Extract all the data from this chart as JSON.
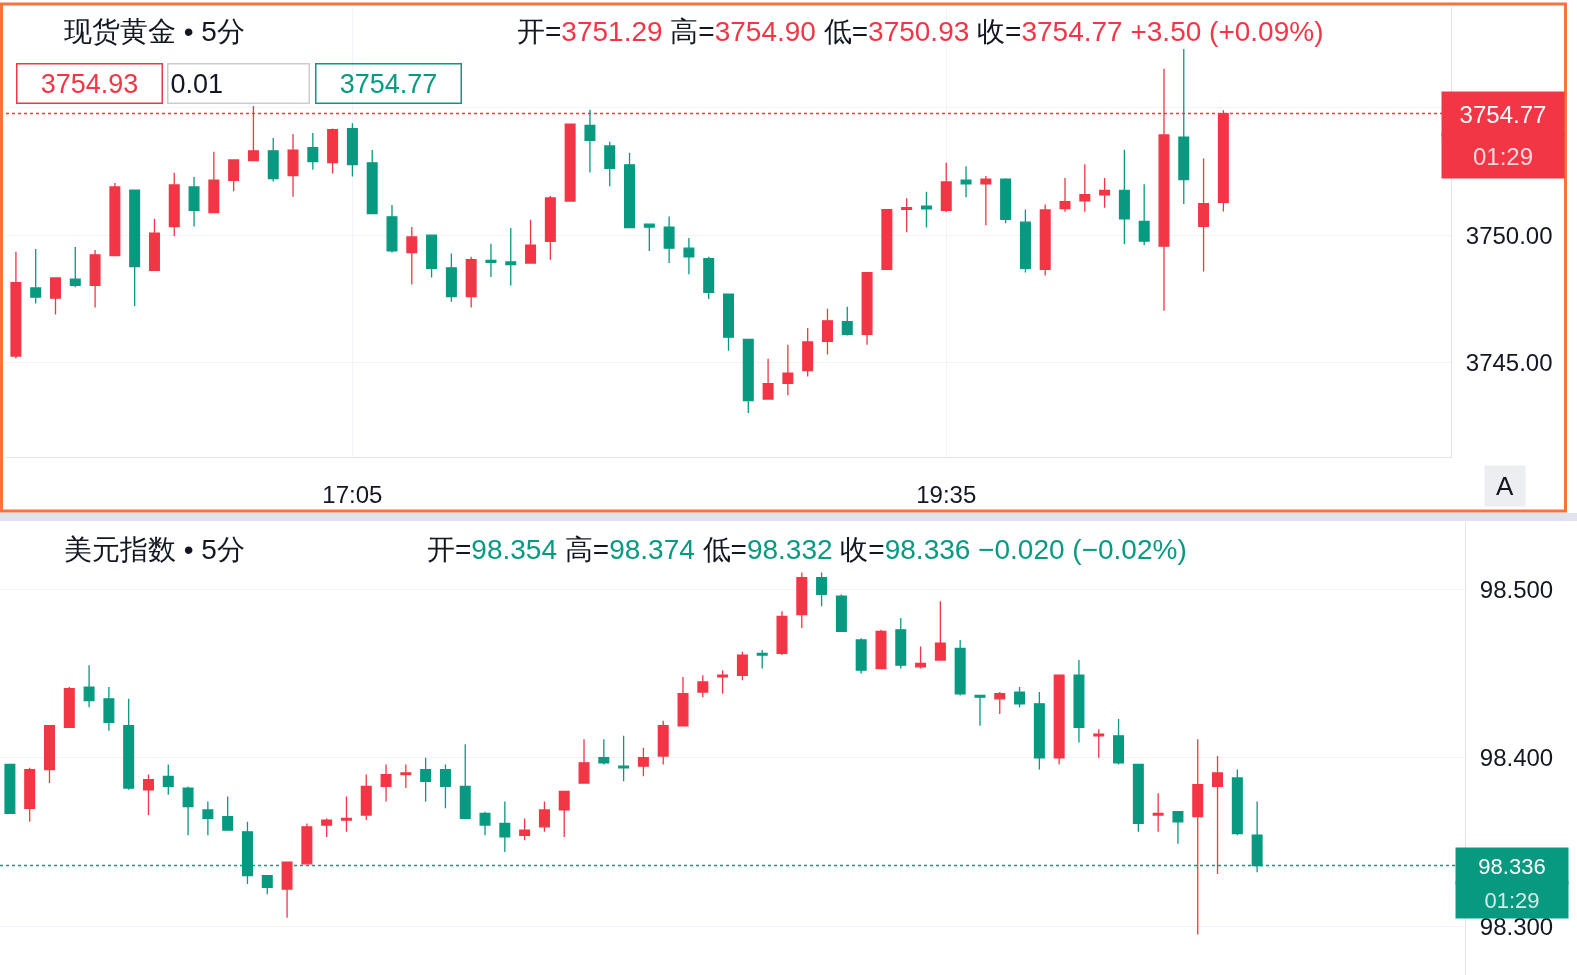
{
  "chart_data": [
    {
      "type": "candlestick",
      "title": "现货黄金 • 5分",
      "subtitle": "开=3751.29 高=3754.90 低=3750.93 收=3754.77 +3.50 (+0.09%)",
      "categories": [
        null,
        null,
        null,
        null,
        null,
        null,
        null,
        null,
        null,
        null,
        null,
        null,
        null,
        null,
        null,
        null,
        null,
        "17:05",
        null,
        null,
        null,
        null,
        null,
        null,
        null,
        null,
        null,
        null,
        null,
        null,
        null,
        null,
        null,
        null,
        null,
        null,
        null,
        null,
        null,
        null,
        null,
        null,
        null,
        null,
        null,
        null,
        null,
        "19:35",
        null,
        null,
        null,
        null,
        null,
        null,
        null,
        null,
        null,
        null,
        null,
        null,
        null,
        null,
        null,
        null,
        null,
        null,
        null,
        null,
        null,
        null,
        null,
        null,
        null
      ],
      "ohlc": [
        [
          3745.26,
          3749.35,
          3745.16,
          3748.14
        ],
        [
          3747.93,
          3749.46,
          3747.32,
          3747.57
        ],
        [
          3747.53,
          3748.35,
          3746.89,
          3748.32
        ],
        [
          3748.28,
          3749.54,
          3747.96,
          3748.03
        ],
        [
          3748.03,
          3749.42,
          3747.16,
          3749.23
        ],
        [
          3749.2,
          3752.05,
          3749.2,
          3751.89
        ],
        [
          3751.77,
          3751.77,
          3747.22,
          3748.77
        ],
        [
          3748.62,
          3750.64,
          3748.62,
          3750.08
        ],
        [
          3750.34,
          3752.45,
          3749.96,
          3751.97
        ],
        [
          3751.89,
          3752.28,
          3750.34,
          3750.97
        ],
        [
          3750.89,
          3753.27,
          3750.86,
          3752.16
        ],
        [
          3752.15,
          3752.95,
          3751.72,
          3752.95
        ],
        [
          3752.93,
          3755.07,
          3752.93,
          3753.31
        ],
        [
          3753.31,
          3753.81,
          3752.11,
          3752.22
        ],
        [
          3752.34,
          3753.97,
          3751.51,
          3753.34
        ],
        [
          3753.43,
          3754.01,
          3752.57,
          3752.89
        ],
        [
          3752.85,
          3754.18,
          3752.42,
          3754.14
        ],
        [
          3754.18,
          3754.39,
          3752.3,
          3752.77
        ],
        [
          3752.84,
          3753.34,
          3750.85,
          3750.85
        ],
        [
          3750.72,
          3751.18,
          3749.32,
          3749.39
        ],
        [
          3749.32,
          3750.32,
          3748.07,
          3749.93
        ],
        [
          3750.0,
          3750.0,
          3748.34,
          3748.7
        ],
        [
          3748.72,
          3749.28,
          3747.39,
          3747.59
        ],
        [
          3747.59,
          3749.15,
          3747.16,
          3749.04
        ],
        [
          3749.01,
          3749.66,
          3748.36,
          3748.93
        ],
        [
          3748.95,
          3750.28,
          3748.03,
          3748.85
        ],
        [
          3748.91,
          3750.61,
          3748.91,
          3749.61
        ],
        [
          3749.76,
          3751.54,
          3749.04,
          3751.46
        ],
        [
          3751.34,
          3754.36,
          3751.34,
          3754.36
        ],
        [
          3754.31,
          3754.92,
          3752.46,
          3753.72
        ],
        [
          3753.5,
          3753.66,
          3751.92,
          3752.62
        ],
        [
          3752.76,
          3753.23,
          3750.3,
          3750.3
        ],
        [
          3750.43,
          3750.43,
          3749.38,
          3750.32
        ],
        [
          3750.32,
          3750.73,
          3748.91,
          3749.49
        ],
        [
          3749.49,
          3749.89,
          3748.47,
          3749.15
        ],
        [
          3749.08,
          3749.15,
          3747.5,
          3747.76
        ],
        [
          3747.69,
          3747.69,
          3745.47,
          3746.0
        ],
        [
          3745.91,
          3745.93,
          3743.03,
          3743.51
        ],
        [
          3743.57,
          3745.15,
          3743.57,
          3744.18
        ],
        [
          3744.19,
          3745.7,
          3743.72,
          3744.59
        ],
        [
          3744.69,
          3746.36,
          3744.46,
          3745.81
        ],
        [
          3745.84,
          3747.11,
          3745.32,
          3746.64
        ],
        [
          3746.61,
          3747.19,
          3746.07,
          3746.11
        ],
        [
          3746.11,
          3748.53,
          3745.7,
          3748.53
        ],
        [
          3748.66,
          3751.0,
          3748.64,
          3751.0
        ],
        [
          3751.01,
          3751.45,
          3750.12,
          3751.08
        ],
        [
          3751.14,
          3751.7,
          3750.3,
          3751.03
        ],
        [
          3750.97,
          3752.84,
          3750.91,
          3752.09
        ],
        [
          3752.16,
          3752.7,
          3751.49,
          3752.01
        ],
        [
          3752.01,
          3752.32,
          3750.39,
          3752.2
        ],
        [
          3752.2,
          3752.23,
          3750.47,
          3750.62
        ],
        [
          3750.51,
          3751.01,
          3748.54,
          3748.7
        ],
        [
          3748.66,
          3751.2,
          3748.42,
          3750.99
        ],
        [
          3751.04,
          3752.24,
          3750.92,
          3751.32
        ],
        [
          3751.35,
          3752.78,
          3750.92,
          3751.59
        ],
        [
          3751.58,
          3752.24,
          3751.08,
          3751.76
        ],
        [
          3751.76,
          3753.35,
          3749.65,
          3750.64
        ],
        [
          3750.54,
          3752.0,
          3749.61,
          3749.77
        ],
        [
          3749.57,
          3756.53,
          3747.04,
          3753.93
        ],
        [
          3753.85,
          3757.3,
          3751.22,
          3752.18
        ],
        [
          3750.35,
          3753.01,
          3748.58,
          3751.24
        ],
        [
          3751.29,
          3754.9,
          3750.93,
          3754.77
        ],
        null,
        null,
        null,
        null,
        null,
        null,
        null,
        null,
        null,
        null,
        null
      ],
      "colors": [
        "#f23645",
        "#089981",
        "#f23645",
        "#089981",
        "#f23645",
        "#f23645",
        "#089981",
        "#f23645",
        "#f23645",
        "#089981",
        "#f23645",
        "#f23645",
        "#f23645",
        "#089981",
        "#f23645",
        "#089981",
        "#f23645",
        "#089981",
        "#089981",
        "#089981",
        "#f23645",
        "#089981",
        "#089981",
        "#f23645",
        "#089981",
        "#089981",
        "#f23645",
        "#f23645",
        "#f23645",
        "#089981",
        "#089981",
        "#089981",
        "#089981",
        "#089981",
        "#089981",
        "#089981",
        "#089981",
        "#089981",
        "#f23645",
        "#f23645",
        "#f23645",
        "#f23645",
        "#089981",
        "#f23645",
        "#f23645",
        "#f23645",
        "#089981",
        "#f23645",
        "#089981",
        "#f23645",
        "#089981",
        "#089981",
        "#f23645",
        "#f23645",
        "#f23645",
        "#f23645",
        "#089981",
        "#089981",
        "#f23645",
        "#089981",
        "#f23645",
        "#f23645",
        null,
        null,
        null,
        null,
        null,
        null,
        null,
        null,
        null,
        null,
        null
      ],
      "ylim": [
        3741.3,
        3758.95
      ],
      "yticks": [
        {
          "value": 3745,
          "label": "3745.00"
        },
        {
          "value": 3750,
          "label": "3750.00"
        },
        {
          "value": 3755,
          "label": null
        }
      ],
      "ref_lines": [
        {
          "axis": "y",
          "value": 3754.77,
          "label": "3754.77",
          "color": "#f23645",
          "line_style": "dotted"
        }
      ],
      "annotations": [
        "3754.93",
        "0.01",
        "3754.77",
        "01:29",
        "A"
      ],
      "grid": true
    },
    {
      "type": "candlestick",
      "title": "美元指数 • 5分",
      "subtitle": "开=98.354 高=98.374 低=98.332 收=98.336 −0.020 (−0.02%)",
      "categories": [
        null,
        null,
        null,
        null,
        null,
        null,
        null,
        null,
        null,
        null,
        null,
        null,
        null,
        null,
        null,
        null,
        null,
        null,
        null,
        null,
        null,
        null,
        null,
        null,
        null,
        null,
        null,
        null,
        null,
        null,
        null,
        null,
        null,
        null,
        null,
        null,
        null,
        null,
        null,
        null,
        null,
        null,
        null,
        null,
        null,
        null,
        null,
        null,
        null,
        null,
        null,
        null,
        null,
        null,
        null,
        null,
        null,
        null,
        null,
        null,
        null,
        null,
        null,
        null,
        null,
        null,
        null,
        null,
        null,
        null,
        null,
        null,
        null,
        null
      ],
      "ohlc": [
        [
          98.396,
          98.396,
          98.367,
          98.367
        ],
        [
          98.37,
          98.394,
          98.362,
          98.393
        ],
        [
          98.393,
          98.419,
          98.385,
          98.419
        ],
        [
          98.418,
          98.442,
          98.418,
          98.441
        ],
        [
          98.442,
          98.455,
          98.43,
          98.434
        ],
        [
          98.435,
          98.442,
          98.416,
          98.421
        ],
        [
          98.419,
          98.435,
          98.381,
          98.382
        ],
        [
          98.381,
          98.39,
          98.366,
          98.387
        ],
        [
          98.389,
          98.396,
          98.378,
          98.383
        ],
        [
          98.382,
          98.383,
          98.354,
          98.371
        ],
        [
          98.369,
          98.374,
          98.354,
          98.364
        ],
        [
          98.365,
          98.377,
          98.357,
          98.357
        ],
        [
          98.356,
          98.362,
          98.325,
          98.33
        ],
        [
          98.33,
          98.33,
          98.319,
          98.323
        ],
        [
          98.322,
          98.338,
          98.305,
          98.338
        ],
        [
          98.337,
          98.361,
          98.337,
          98.359
        ],
        [
          98.36,
          98.364,
          98.353,
          98.363
        ],
        [
          98.363,
          98.377,
          98.356,
          98.364
        ],
        [
          98.366,
          98.39,
          98.363,
          98.383
        ],
        [
          98.383,
          98.396,
          98.374,
          98.39
        ],
        [
          98.39,
          98.396,
          98.382,
          98.391
        ],
        [
          98.393,
          98.4,
          98.374,
          98.386
        ],
        [
          98.393,
          98.396,
          98.37,
          98.383
        ],
        [
          98.383,
          98.408,
          98.364,
          98.364
        ],
        [
          98.367,
          98.368,
          98.354,
          98.36
        ],
        [
          98.361,
          98.374,
          98.344,
          98.353
        ],
        [
          98.354,
          98.364,
          98.351,
          98.357
        ],
        [
          98.359,
          98.374,
          98.356,
          98.369
        ],
        [
          98.369,
          98.38,
          98.353,
          98.38
        ],
        [
          98.385,
          98.411,
          98.385,
          98.397
        ],
        [
          98.4,
          98.411,
          98.396,
          98.397
        ],
        [
          98.395,
          98.413,
          98.386,
          98.394
        ],
        [
          98.395,
          98.406,
          98.389,
          98.4
        ],
        [
          98.401,
          98.422,
          98.396,
          98.419
        ],
        [
          98.419,
          98.448,
          98.419,
          98.438
        ],
        [
          98.439,
          98.449,
          98.436,
          98.445
        ],
        [
          98.448,
          98.452,
          98.438,
          98.449
        ],
        [
          98.449,
          98.463,
          98.446,
          98.461
        ],
        [
          98.462,
          98.464,
          98.453,
          98.461
        ],
        [
          98.462,
          98.487,
          98.461,
          98.484
        ],
        [
          98.485,
          98.51,
          98.477,
          98.507
        ],
        [
          98.507,
          98.51,
          98.49,
          98.497
        ],
        [
          98.496,
          98.497,
          98.475,
          98.475
        ],
        [
          98.47,
          98.471,
          98.45,
          98.452
        ],
        [
          98.453,
          98.476,
          98.453,
          98.475
        ],
        [
          98.476,
          98.483,
          98.453,
          98.455
        ],
        [
          98.454,
          98.466,
          98.453,
          98.456
        ],
        [
          98.458,
          98.493,
          98.458,
          98.468
        ],
        [
          98.465,
          98.47,
          98.437,
          98.438
        ],
        [
          98.437,
          98.437,
          98.419,
          98.436
        ],
        [
          98.435,
          98.439,
          98.426,
          98.438
        ],
        [
          98.439,
          98.442,
          98.43,
          98.432
        ],
        [
          98.432,
          98.439,
          98.393,
          98.4
        ],
        [
          98.4,
          98.449,
          98.396,
          98.449
        ],
        [
          98.449,
          98.458,
          98.409,
          98.418
        ],
        [
          98.413,
          98.417,
          98.4,
          98.414
        ],
        [
          98.413,
          98.423,
          98.396,
          98.397
        ],
        [
          98.396,
          98.396,
          98.356,
          98.361
        ],
        [
          98.366,
          98.379,
          98.356,
          98.367
        ],
        [
          98.368,
          98.368,
          98.349,
          98.362
        ],
        [
          98.365,
          98.411,
          98.295,
          98.384
        ],
        [
          98.383,
          98.401,
          98.331,
          98.391
        ],
        [
          98.388,
          98.393,
          98.354,
          98.355
        ],
        [
          98.354,
          98.374,
          98.332,
          98.336
        ],
        null,
        null,
        null,
        null,
        null,
        null,
        null,
        null,
        null,
        null
      ],
      "colors": [
        "#089981",
        "#f23645",
        "#f23645",
        "#f23645",
        "#089981",
        "#089981",
        "#089981",
        "#f23645",
        "#089981",
        "#089981",
        "#089981",
        "#089981",
        "#089981",
        "#089981",
        "#f23645",
        "#f23645",
        "#f23645",
        "#f23645",
        "#f23645",
        "#f23645",
        "#f23645",
        "#089981",
        "#089981",
        "#089981",
        "#089981",
        "#089981",
        "#f23645",
        "#f23645",
        "#f23645",
        "#f23645",
        "#089981",
        "#089981",
        "#f23645",
        "#f23645",
        "#f23645",
        "#f23645",
        "#f23645",
        "#f23645",
        "#089981",
        "#f23645",
        "#f23645",
        "#089981",
        "#089981",
        "#089981",
        "#f23645",
        "#089981",
        "#f23645",
        "#f23645",
        "#089981",
        "#089981",
        "#f23645",
        "#089981",
        "#089981",
        "#f23645",
        "#089981",
        "#f23645",
        "#089981",
        "#089981",
        "#f23645",
        "#089981",
        "#f23645",
        "#f23645",
        "#089981",
        "#089981",
        null,
        null,
        null,
        null,
        null,
        null,
        null,
        null,
        null,
        null
      ],
      "ylim": [
        98.271,
        98.54
      ],
      "yticks": [
        {
          "value": 98.3,
          "label": "98.300"
        },
        {
          "value": 98.4,
          "label": "98.400"
        },
        {
          "value": 98.5,
          "label": "98.500"
        }
      ],
      "ref_lines": [
        {
          "axis": "y",
          "value": 98.336,
          "label": "98.336",
          "color": "#089981",
          "line_style": "dotted"
        }
      ],
      "annotations": [
        "01:29"
      ],
      "grid": "y",
      "tick_labels": "y"
    }
  ]
}
